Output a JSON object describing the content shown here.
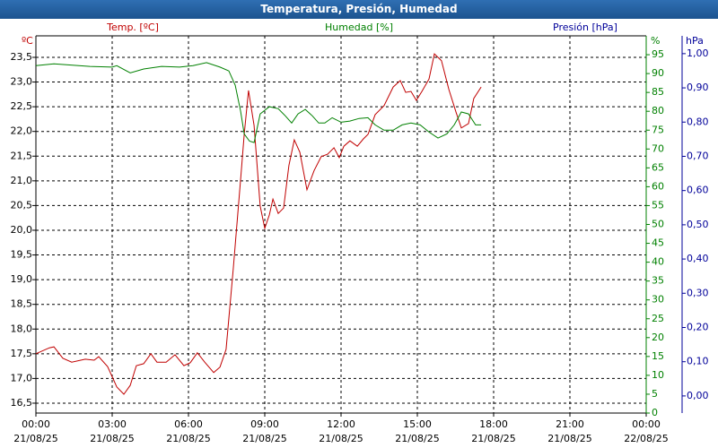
{
  "chart_data": {
    "type": "line",
    "title": "Temperatura, Presión, Humedad",
    "xlim": [
      0,
      24
    ],
    "xticks": [
      {
        "value": 0,
        "label": "00:00 21/08/25"
      },
      {
        "value": 3,
        "label": "03:00 21/08/25"
      },
      {
        "value": 6,
        "label": "06:00 21/08/25"
      },
      {
        "value": 9,
        "label": "09:00 21/08/25"
      },
      {
        "value": 12,
        "label": "12:00 21/08/25"
      },
      {
        "value": 15,
        "label": "15:00 21/08/25"
      },
      {
        "value": 18,
        "label": "18:00 21/08/25"
      },
      {
        "value": 21,
        "label": "21:00 21/08/25"
      },
      {
        "value": 24,
        "label": "00:00 22/08/25"
      }
    ],
    "ylabel": "ºC",
    "ylim": [
      16.3,
      23.935
    ],
    "yticks": [
      {
        "value": 16.5,
        "label": "16,5"
      },
      {
        "value": 17,
        "label": "17,0"
      },
      {
        "value": 17.5,
        "label": "17,5"
      },
      {
        "value": 18,
        "label": "18,0"
      },
      {
        "value": 18.5,
        "label": "18,5"
      },
      {
        "value": 19,
        "label": "19,0"
      },
      {
        "value": 19.5,
        "label": "19,5"
      },
      {
        "value": 20,
        "label": "20,0"
      },
      {
        "value": 20.5,
        "label": "20,5"
      },
      {
        "value": 21,
        "label": "21,0"
      },
      {
        "value": 21.5,
        "label": "21,5"
      },
      {
        "value": 22,
        "label": "22,0"
      },
      {
        "value": 22.5,
        "label": "22,5"
      },
      {
        "value": 23,
        "label": "23,0"
      },
      {
        "value": 23.5,
        "label": "23,5"
      }
    ],
    "y2label": "%",
    "y2lim": [
      0,
      100
    ],
    "y2ticks": [
      0,
      5,
      10,
      15,
      20,
      25,
      30,
      35,
      40,
      45,
      50,
      55,
      60,
      65,
      70,
      75,
      80,
      85,
      90,
      95
    ],
    "y3label": "hPa",
    "y3lim": [
      -0.05,
      1.052
    ],
    "y3ticks": [
      {
        "value": 0,
        "label": "0,00"
      },
      {
        "value": 0.1,
        "label": "0,10"
      },
      {
        "value": 0.2,
        "label": "0,20"
      },
      {
        "value": 0.3,
        "label": "0,30"
      },
      {
        "value": 0.4,
        "label": "0,40"
      },
      {
        "value": 0.5,
        "label": "0,50"
      },
      {
        "value": 0.6,
        "label": "0,60"
      },
      {
        "value": 0.7,
        "label": "0,70"
      },
      {
        "value": 0.8,
        "label": "0,80"
      },
      {
        "value": 0.9,
        "label": "0,90"
      },
      {
        "value": 1,
        "label": "1,00"
      }
    ],
    "grid": true,
    "series": [
      {
        "name": "Temp. [ºC]",
        "color": "#c00000",
        "axis": "y",
        "x": [
          0,
          0.53,
          0.71,
          1.06,
          1.41,
          1.94,
          2.29,
          2.47,
          2.82,
          3.18,
          3.46,
          3.71,
          3.95,
          4.24,
          4.52,
          4.76,
          5.12,
          5.47,
          5.82,
          6.07,
          6.35,
          6.64,
          6.99,
          7.24,
          7.48,
          7.76,
          8.05,
          8.19,
          8.36,
          8.58,
          8.82,
          9.0,
          9.18,
          9.32,
          9.53,
          9.74,
          9.95,
          10.16,
          10.38,
          10.66,
          10.94,
          11.22,
          11.47,
          11.72,
          11.93,
          12.11,
          12.35,
          12.64,
          12.88,
          13.06,
          13.34,
          13.69,
          14.05,
          14.33,
          14.54,
          14.75,
          14.96,
          15.18,
          15.46,
          15.67,
          15.95,
          16.24,
          16.52,
          16.73,
          17.01,
          17.22,
          17.51
        ],
        "values": [
          17.5,
          17.62,
          17.64,
          17.41,
          17.33,
          17.39,
          17.37,
          17.44,
          17.24,
          16.83,
          16.68,
          16.86,
          17.26,
          17.3,
          17.5,
          17.33,
          17.33,
          17.48,
          17.26,
          17.32,
          17.52,
          17.33,
          17.12,
          17.23,
          17.59,
          19.22,
          21.03,
          21.94,
          22.83,
          22.12,
          20.49,
          20.04,
          20.31,
          20.63,
          20.34,
          20.45,
          21.31,
          21.83,
          21.58,
          20.82,
          21.21,
          21.49,
          21.54,
          21.67,
          21.47,
          21.7,
          21.81,
          21.7,
          21.85,
          21.94,
          22.34,
          22.52,
          22.9,
          23.03,
          22.79,
          22.81,
          22.63,
          22.81,
          23.06,
          23.57,
          23.43,
          22.85,
          22.39,
          22.07,
          22.16,
          22.67,
          22.9
        ]
      },
      {
        "name": "Humedad [%]",
        "color": "#008000",
        "axis": "y2",
        "x": [
          0,
          0.71,
          2.12,
          3.0,
          3.18,
          3.71,
          4.24,
          4.94,
          5.65,
          6.18,
          6.71,
          7.24,
          7.59,
          7.84,
          8.05,
          8.19,
          8.4,
          8.58,
          8.82,
          9.18,
          9.53,
          9.81,
          10.06,
          10.31,
          10.59,
          10.87,
          11.12,
          11.36,
          11.65,
          12.0,
          12.35,
          12.71,
          13.06,
          13.34,
          13.69,
          14.05,
          14.4,
          14.75,
          15.11,
          15.46,
          15.81,
          16.16,
          16.45,
          16.73,
          17.01,
          17.29,
          17.51
        ],
        "values": [
          92.1,
          92.6,
          91.9,
          91.7,
          92.1,
          90.2,
          91.2,
          91.9,
          91.7,
          92.1,
          92.9,
          91.7,
          90.7,
          86.9,
          80.0,
          74.0,
          72.1,
          71.7,
          79.3,
          81.2,
          80.7,
          78.8,
          76.9,
          79.3,
          80.5,
          78.8,
          76.9,
          76.9,
          78.3,
          77.1,
          77.4,
          78.1,
          78.3,
          76.4,
          75.0,
          75.0,
          76.4,
          76.9,
          76.4,
          74.5,
          72.9,
          74.0,
          76.4,
          79.8,
          79.3,
          76.4,
          76.4
        ]
      },
      {
        "name": "Presión [hPa]",
        "color": "#000099",
        "axis": "y3",
        "x": [],
        "values": []
      }
    ]
  }
}
